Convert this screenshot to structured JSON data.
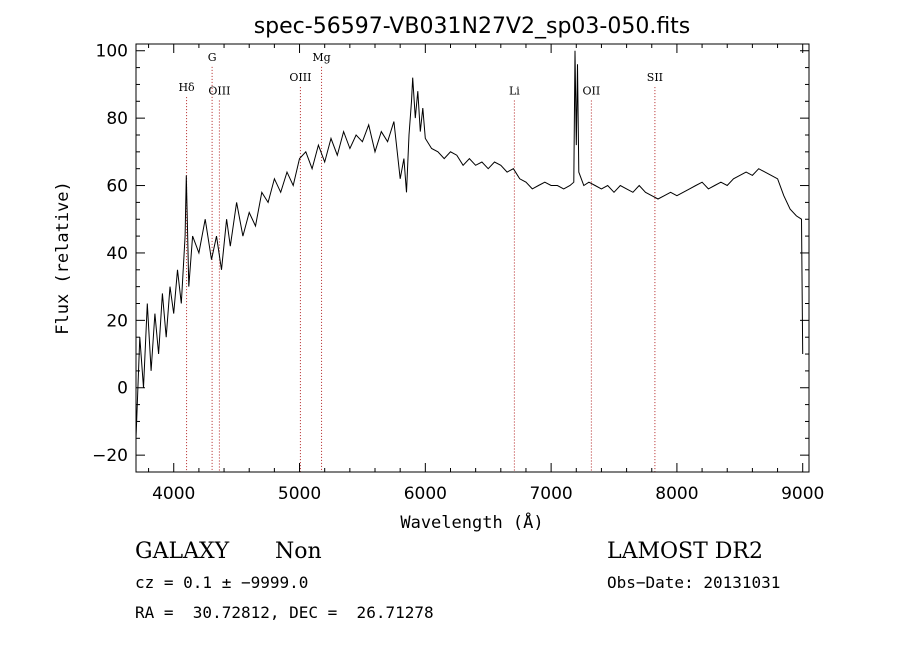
{
  "chart_data": {
    "type": "line",
    "title": "spec-56597-VB031N27V2_sp03-050.fits",
    "xlabel": "Wavelength (Å)",
    "ylabel": "Flux (relative)",
    "xlim": [
      3700,
      9050
    ],
    "ylim": [
      -25,
      102
    ],
    "x_ticks": [
      4000,
      5000,
      6000,
      7000,
      8000,
      9000
    ],
    "x_tick_labels": [
      "4000",
      "5000",
      "6000",
      "7000",
      "8000",
      "9000"
    ],
    "y_ticks": [
      -20,
      0,
      20,
      40,
      60,
      80,
      100
    ],
    "y_tick_labels": [
      "−20",
      "0",
      "20",
      "40",
      "60",
      "80",
      "100"
    ],
    "grid": false,
    "line_color": "#000000",
    "marker_line_color": "#b22222",
    "spectral_lines": [
      {
        "label": "Hδ",
        "wavelength": 4102,
        "label_y": 88
      },
      {
        "label": "G",
        "wavelength": 4305,
        "label_y": 97
      },
      {
        "label": "OIII",
        "wavelength": 4363,
        "label_y": 87
      },
      {
        "label": "OIII",
        "wavelength": 5007,
        "label_y": 91
      },
      {
        "label": "Mg",
        "wavelength": 5175,
        "label_y": 97
      },
      {
        "label": "Li",
        "wavelength": 6708,
        "label_y": 87
      },
      {
        "label": "OII",
        "wavelength": 7320,
        "label_y": 87
      },
      {
        "label": "SII",
        "wavelength": 7825,
        "label_y": 91
      }
    ],
    "series": [
      {
        "x": [
          3700,
          3730,
          3760,
          3790,
          3820,
          3850,
          3880,
          3910,
          3940,
          3970,
          4000,
          4030,
          4060,
          4090,
          4100,
          4120,
          4150,
          4200,
          4250,
          4300,
          4340,
          4380,
          4420,
          4450,
          4500,
          4550,
          4600,
          4650,
          4700,
          4750,
          4800,
          4850,
          4900,
          4950,
          5000,
          5050,
          5100,
          5150,
          5200,
          5250,
          5300,
          5350,
          5400,
          5450,
          5500,
          5550,
          5600,
          5650,
          5700,
          5750,
          5800,
          5830,
          5850,
          5870,
          5890,
          5900,
          5920,
          5940,
          5960,
          5980,
          6000,
          6050,
          6100,
          6150,
          6200,
          6250,
          6300,
          6350,
          6400,
          6450,
          6500,
          6550,
          6600,
          6650,
          6700,
          6750,
          6800,
          6850,
          6900,
          6950,
          7000,
          7050,
          7100,
          7150,
          7180,
          7190,
          7200,
          7210,
          7220,
          7240,
          7260,
          7300,
          7350,
          7400,
          7450,
          7500,
          7550,
          7600,
          7650,
          7700,
          7750,
          7800,
          7850,
          7900,
          7950,
          8000,
          8050,
          8100,
          8150,
          8200,
          8250,
          8300,
          8350,
          8400,
          8450,
          8500,
          8550,
          8600,
          8650,
          8700,
          8750,
          8800,
          8850,
          8900,
          8950,
          8990,
          9000
        ],
        "y": [
          -15,
          15,
          0,
          25,
          5,
          22,
          10,
          28,
          15,
          30,
          22,
          35,
          25,
          45,
          63,
          30,
          45,
          40,
          50,
          38,
          45,
          35,
          50,
          42,
          55,
          45,
          52,
          48,
          58,
          55,
          62,
          58,
          64,
          60,
          68,
          70,
          65,
          72,
          67,
          74,
          69,
          76,
          71,
          75,
          73,
          78,
          70,
          76,
          73,
          79,
          62,
          68,
          58,
          75,
          85,
          92,
          80,
          88,
          76,
          83,
          74,
          71,
          70,
          68,
          70,
          69,
          66,
          68,
          66,
          67,
          65,
          67,
          66,
          64,
          65,
          62,
          61,
          59,
          60,
          61,
          60,
          60,
          59,
          60,
          61,
          100,
          72,
          96,
          64,
          62,
          60,
          61,
          60,
          59,
          60,
          58,
          60,
          59,
          58,
          60,
          58,
          57,
          56,
          57,
          58,
          57,
          58,
          59,
          60,
          61,
          59,
          60,
          61,
          60,
          62,
          63,
          64,
          63,
          65,
          64,
          63,
          62,
          57,
          53,
          51,
          50,
          10
        ]
      }
    ]
  },
  "info": {
    "class": "GALAXY",
    "subclass": "Non",
    "survey": "LAMOST DR2",
    "cz": "cz = 0.1 ± −9999.0",
    "obs_date": "Obs−Date: 20131031",
    "coords": "RA =  30.72812, DEC =  26.71278"
  }
}
